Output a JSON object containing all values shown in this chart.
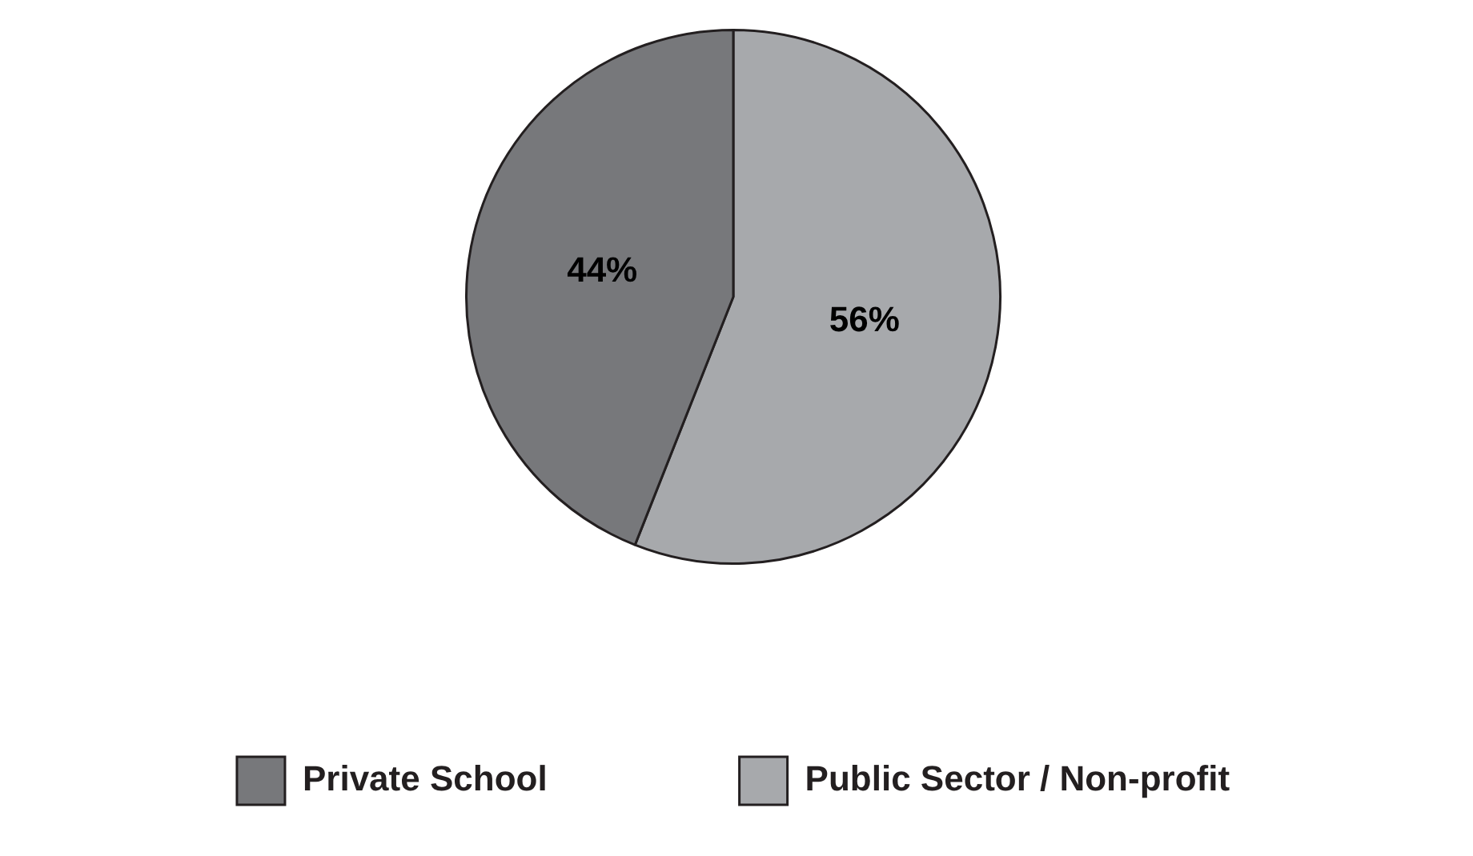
{
  "chart_data": {
    "type": "pie",
    "categories": [
      "Public Sector / Non-profit",
      "Private School"
    ],
    "values": [
      56,
      44
    ],
    "colors": [
      "#a7a9ac",
      "#77787b"
    ],
    "value_labels": [
      "56%",
      "44%"
    ],
    "legend": "bottom"
  }
}
